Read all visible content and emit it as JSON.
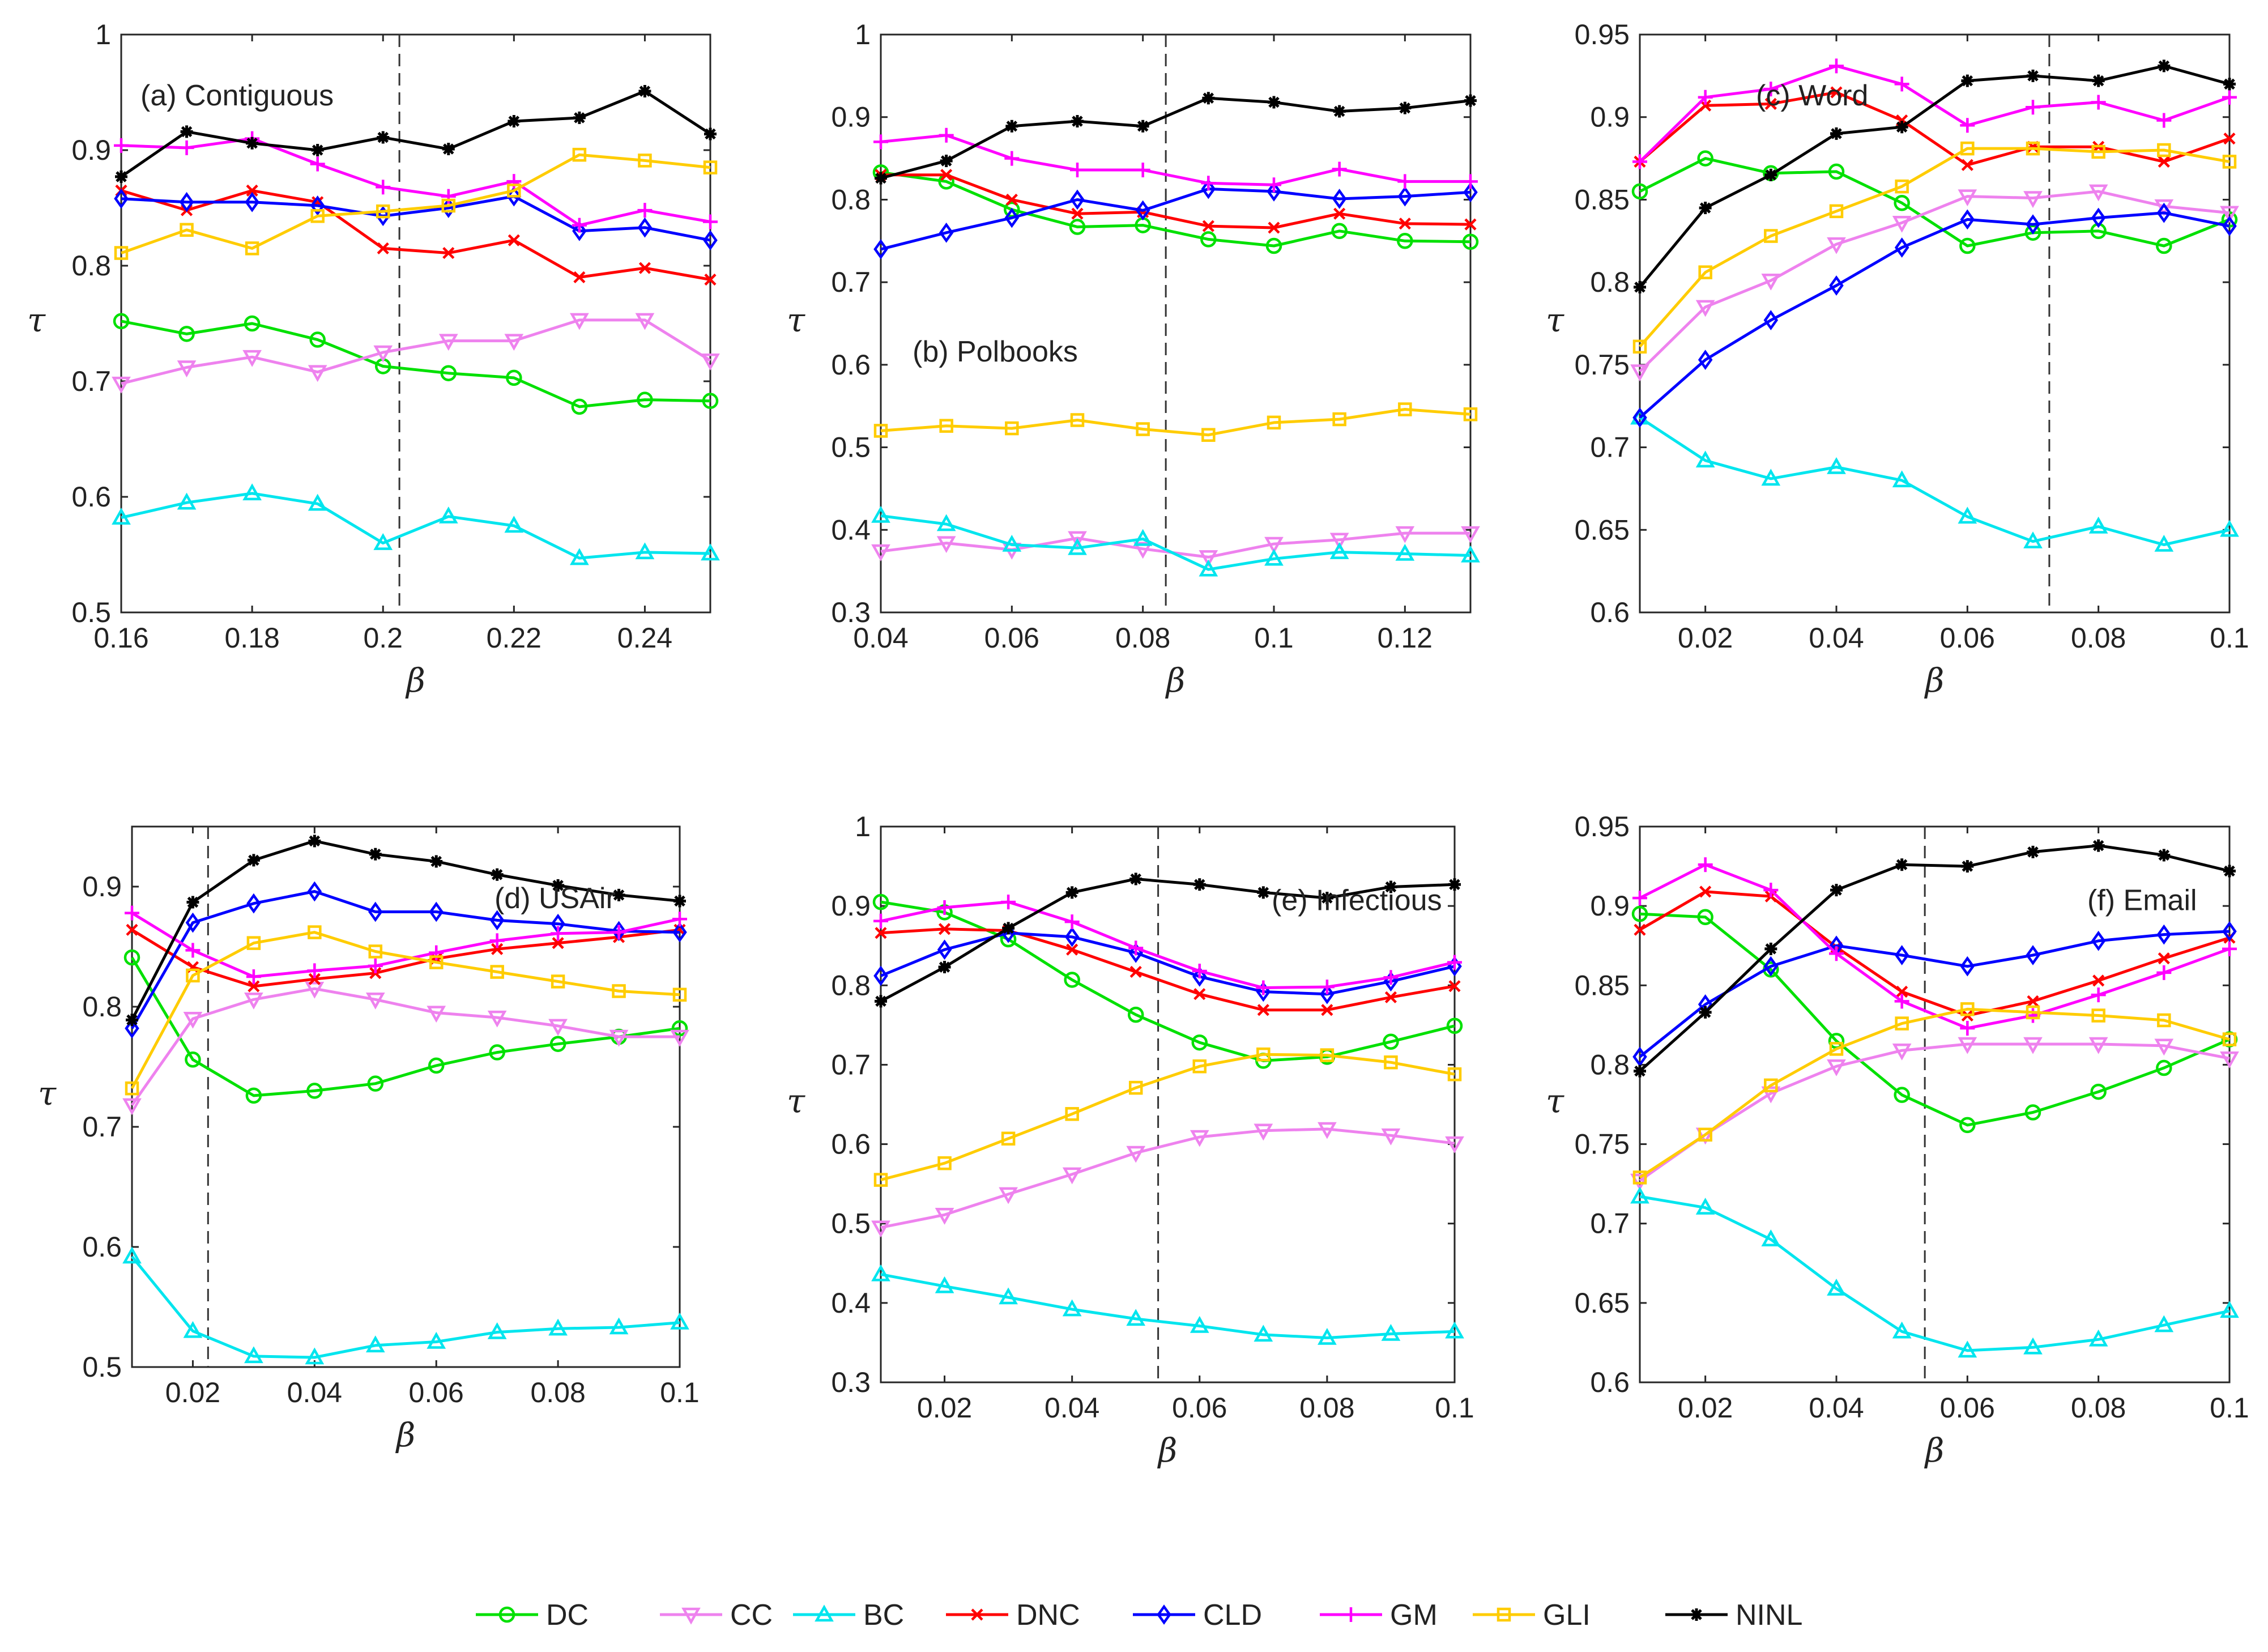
{
  "figure": {
    "series_meta": [
      {
        "key": "DC",
        "name": "DC",
        "color": "#00e000",
        "marker": "circle"
      },
      {
        "key": "CC",
        "name": "CC",
        "color": "#ee82ee",
        "marker": "triangle-down"
      },
      {
        "key": "BC",
        "name": "BC",
        "color": "#00e5ee",
        "marker": "triangle-up"
      },
      {
        "key": "DNC",
        "name": "DNC",
        "color": "#ff0000",
        "marker": "x"
      },
      {
        "key": "CLD",
        "name": "CLD",
        "color": "#0000ff",
        "marker": "diamond"
      },
      {
        "key": "GM",
        "name": "GM",
        "color": "#ff00ff",
        "marker": "plus"
      },
      {
        "key": "GLI",
        "name": "GLI",
        "color": "#ffcc00",
        "marker": "square"
      },
      {
        "key": "NINL",
        "name": "NINL",
        "color": "#000000",
        "marker": "star"
      }
    ]
  },
  "chart_data": [
    {
      "type": "line",
      "title": "(a) Contiguous",
      "xlabel": "β",
      "ylabel": "τ",
      "xlim": [
        0.16,
        0.25
      ],
      "ylim": [
        0.5,
        1.0
      ],
      "xticks": [
        0.16,
        0.18,
        0.2,
        0.22,
        0.24
      ],
      "xtick_labels": [
        "0.16",
        "0.18",
        "0.2",
        "0.22",
        "0.24"
      ],
      "yticks": [
        0.5,
        0.6,
        0.7,
        0.8,
        0.9,
        1.0
      ],
      "ytick_labels": [
        "0.5",
        "0.6",
        "0.7",
        "0.8",
        "0.9",
        "1"
      ],
      "vline": 0.2025,
      "x": [
        0.16,
        0.17,
        0.18,
        0.19,
        0.2,
        0.21,
        0.22,
        0.23,
        0.24,
        0.25
      ],
      "series": [
        {
          "name": "DC",
          "values": [
            0.752,
            0.741,
            0.75,
            0.736,
            0.713,
            0.707,
            0.703,
            0.678,
            0.684,
            0.683
          ]
        },
        {
          "name": "CC",
          "values": [
            0.698,
            0.712,
            0.721,
            0.708,
            0.725,
            0.735,
            0.735,
            0.753,
            0.753,
            0.718
          ]
        },
        {
          "name": "BC",
          "values": [
            0.582,
            0.595,
            0.603,
            0.594,
            0.56,
            0.583,
            0.575,
            0.547,
            0.552,
            0.551
          ]
        },
        {
          "name": "DNC",
          "values": [
            0.865,
            0.848,
            0.865,
            0.855,
            0.815,
            0.811,
            0.822,
            0.79,
            0.798,
            0.788
          ]
        },
        {
          "name": "CLD",
          "values": [
            0.858,
            0.855,
            0.855,
            0.852,
            0.843,
            0.85,
            0.86,
            0.83,
            0.833,
            0.822
          ]
        },
        {
          "name": "GM",
          "values": [
            0.904,
            0.902,
            0.91,
            0.888,
            0.868,
            0.86,
            0.873,
            0.835,
            0.848,
            0.838
          ]
        },
        {
          "name": "GLI",
          "values": [
            0.811,
            0.831,
            0.815,
            0.843,
            0.847,
            0.852,
            0.865,
            0.896,
            0.891,
            0.885
          ]
        },
        {
          "name": "NINL",
          "values": [
            0.877,
            0.916,
            0.906,
            0.9,
            0.911,
            0.901,
            0.925,
            0.928,
            0.951,
            0.914
          ]
        }
      ]
    },
    {
      "type": "line",
      "title": "(b) Polbooks",
      "xlabel": "β",
      "ylabel": "τ",
      "xlim": [
        0.04,
        0.13
      ],
      "ylim": [
        0.3,
        1.0
      ],
      "xticks": [
        0.04,
        0.06,
        0.08,
        0.1,
        0.12
      ],
      "xtick_labels": [
        "0.04",
        "0.06",
        "0.08",
        "0.1",
        "0.12"
      ],
      "yticks": [
        0.3,
        0.4,
        0.5,
        0.6,
        0.7,
        0.8,
        0.9,
        1.0
      ],
      "ytick_labels": [
        "0.3",
        "0.4",
        "0.5",
        "0.6",
        "0.7",
        "0.8",
        "0.9",
        "1"
      ],
      "vline": 0.0835,
      "x": [
        0.04,
        0.05,
        0.06,
        0.07,
        0.08,
        0.09,
        0.1,
        0.11,
        0.12,
        0.13
      ],
      "series": [
        {
          "name": "DC",
          "values": [
            0.833,
            0.822,
            0.788,
            0.767,
            0.769,
            0.752,
            0.744,
            0.762,
            0.75,
            0.749
          ]
        },
        {
          "name": "CC",
          "values": [
            0.374,
            0.384,
            0.376,
            0.39,
            0.377,
            0.367,
            0.383,
            0.388,
            0.396,
            0.396
          ]
        },
        {
          "name": "BC",
          "values": [
            0.417,
            0.407,
            0.382,
            0.378,
            0.389,
            0.352,
            0.365,
            0.373,
            0.371,
            0.369
          ]
        },
        {
          "name": "DNC",
          "values": [
            0.83,
            0.83,
            0.8,
            0.783,
            0.785,
            0.768,
            0.766,
            0.783,
            0.771,
            0.77
          ]
        },
        {
          "name": "CLD",
          "values": [
            0.74,
            0.76,
            0.778,
            0.8,
            0.787,
            0.813,
            0.81,
            0.801,
            0.804,
            0.809
          ]
        },
        {
          "name": "GM",
          "values": [
            0.87,
            0.878,
            0.85,
            0.836,
            0.836,
            0.82,
            0.818,
            0.837,
            0.822,
            0.822
          ]
        },
        {
          "name": "GLI",
          "values": [
            0.52,
            0.526,
            0.523,
            0.533,
            0.522,
            0.515,
            0.53,
            0.534,
            0.546,
            0.54
          ]
        },
        {
          "name": "NINL",
          "values": [
            0.826,
            0.847,
            0.889,
            0.895,
            0.889,
            0.923,
            0.918,
            0.907,
            0.911,
            0.92
          ]
        }
      ]
    },
    {
      "type": "line",
      "title": "(c) Word",
      "xlabel": "β",
      "ylabel": "τ",
      "xlim": [
        0.01,
        0.1
      ],
      "ylim": [
        0.6,
        0.95
      ],
      "xticks": [
        0.02,
        0.04,
        0.06,
        0.08,
        0.1
      ],
      "xtick_labels": [
        "0.02",
        "0.04",
        "0.06",
        "0.08",
        "0.1"
      ],
      "yticks": [
        0.6,
        0.65,
        0.7,
        0.75,
        0.8,
        0.85,
        0.9,
        0.95
      ],
      "ytick_labels": [
        "0.6",
        "0.65",
        "0.7",
        "0.75",
        "0.8",
        "0.85",
        "0.9",
        "0.95"
      ],
      "vline": 0.0725,
      "x": [
        0.01,
        0.02,
        0.03,
        0.04,
        0.05,
        0.06,
        0.07,
        0.08,
        0.09,
        0.1
      ],
      "series": [
        {
          "name": "DC",
          "values": [
            0.855,
            0.875,
            0.866,
            0.867,
            0.848,
            0.822,
            0.83,
            0.831,
            0.822,
            0.838
          ]
        },
        {
          "name": "CC",
          "values": [
            0.746,
            0.785,
            0.801,
            0.823,
            0.836,
            0.852,
            0.851,
            0.855,
            0.846,
            0.842
          ]
        },
        {
          "name": "BC",
          "values": [
            0.718,
            0.692,
            0.681,
            0.688,
            0.68,
            0.658,
            0.643,
            0.652,
            0.641,
            0.65
          ]
        },
        {
          "name": "DNC",
          "values": [
            0.873,
            0.907,
            0.908,
            0.915,
            0.898,
            0.871,
            0.882,
            0.882,
            0.873,
            0.887
          ]
        },
        {
          "name": "CLD",
          "values": [
            0.718,
            0.753,
            0.777,
            0.798,
            0.821,
            0.838,
            0.835,
            0.839,
            0.842,
            0.834
          ]
        },
        {
          "name": "GM",
          "values": [
            0.873,
            0.912,
            0.917,
            0.931,
            0.92,
            0.895,
            0.906,
            0.909,
            0.898,
            0.912
          ]
        },
        {
          "name": "GLI",
          "values": [
            0.761,
            0.806,
            0.828,
            0.843,
            0.858,
            0.881,
            0.881,
            0.879,
            0.88,
            0.873
          ]
        },
        {
          "name": "NINL",
          "values": [
            0.797,
            0.845,
            0.865,
            0.89,
            0.894,
            0.922,
            0.925,
            0.922,
            0.931,
            0.92
          ]
        }
      ]
    },
    {
      "type": "line",
      "title": "(d) USAir",
      "xlabel": "β",
      "ylabel": "τ",
      "xlim": [
        0.01,
        0.1
      ],
      "ylim": [
        0.5,
        0.95
      ],
      "xticks": [
        0.02,
        0.04,
        0.06,
        0.08,
        0.1
      ],
      "xtick_labels": [
        "0.02",
        "0.04",
        "0.06",
        "0.08",
        "0.1"
      ],
      "yticks": [
        0.5,
        0.6,
        0.7,
        0.8,
        0.9
      ],
      "ytick_labels": [
        "0.5",
        "0.6",
        "0.7",
        "0.8",
        "0.9"
      ],
      "vline": 0.0225,
      "x": [
        0.01,
        0.02,
        0.03,
        0.04,
        0.05,
        0.06,
        0.07,
        0.08,
        0.09,
        0.1
      ],
      "series": [
        {
          "name": "DC",
          "values": [
            0.841,
            0.756,
            0.726,
            0.73,
            0.736,
            0.751,
            0.762,
            0.769,
            0.775,
            0.782
          ]
        },
        {
          "name": "CC",
          "values": [
            0.718,
            0.79,
            0.806,
            0.815,
            0.806,
            0.795,
            0.791,
            0.784,
            0.775,
            0.775
          ]
        },
        {
          "name": "BC",
          "values": [
            0.592,
            0.53,
            0.509,
            0.508,
            0.518,
            0.521,
            0.529,
            0.532,
            0.533,
            0.537
          ]
        },
        {
          "name": "DNC",
          "values": [
            0.864,
            0.833,
            0.817,
            0.823,
            0.828,
            0.84,
            0.848,
            0.853,
            0.858,
            0.864
          ]
        },
        {
          "name": "CLD",
          "values": [
            0.782,
            0.87,
            0.886,
            0.896,
            0.879,
            0.879,
            0.872,
            0.869,
            0.863,
            0.862
          ]
        },
        {
          "name": "GM",
          "values": [
            0.878,
            0.847,
            0.825,
            0.83,
            0.834,
            0.845,
            0.855,
            0.861,
            0.862,
            0.873
          ]
        },
        {
          "name": "GLI",
          "values": [
            0.732,
            0.826,
            0.853,
            0.862,
            0.846,
            0.837,
            0.829,
            0.821,
            0.813,
            0.81
          ]
        },
        {
          "name": "NINL",
          "values": [
            0.789,
            0.887,
            0.922,
            0.938,
            0.927,
            0.921,
            0.91,
            0.901,
            0.893,
            0.888
          ]
        }
      ]
    },
    {
      "type": "line",
      "title": "(e) Infectious",
      "xlabel": "β",
      "ylabel": "τ",
      "xlim": [
        0.01,
        0.1
      ],
      "ylim": [
        0.3,
        1.0
      ],
      "xticks": [
        0.02,
        0.04,
        0.06,
        0.08,
        0.1
      ],
      "xtick_labels": [
        "0.02",
        "0.04",
        "0.06",
        "0.08",
        "0.1"
      ],
      "yticks": [
        0.3,
        0.4,
        0.5,
        0.6,
        0.7,
        0.8,
        0.9,
        1.0
      ],
      "ytick_labels": [
        "0.3",
        "0.4",
        "0.5",
        "0.6",
        "0.7",
        "0.8",
        "0.9",
        "1"
      ],
      "vline": 0.0535,
      "x": [
        0.01,
        0.02,
        0.03,
        0.04,
        0.05,
        0.06,
        0.07,
        0.08,
        0.09,
        0.1
      ],
      "series": [
        {
          "name": "DC",
          "values": [
            0.905,
            0.892,
            0.858,
            0.807,
            0.763,
            0.728,
            0.705,
            0.71,
            0.729,
            0.749
          ]
        },
        {
          "name": "CC",
          "values": [
            0.495,
            0.511,
            0.537,
            0.562,
            0.589,
            0.609,
            0.617,
            0.619,
            0.611,
            0.601
          ]
        },
        {
          "name": "BC",
          "values": [
            0.436,
            0.421,
            0.407,
            0.392,
            0.38,
            0.371,
            0.36,
            0.356,
            0.361,
            0.364
          ]
        },
        {
          "name": "DNC",
          "values": [
            0.866,
            0.871,
            0.869,
            0.845,
            0.817,
            0.789,
            0.769,
            0.769,
            0.785,
            0.799
          ]
        },
        {
          "name": "CLD",
          "values": [
            0.812,
            0.845,
            0.866,
            0.861,
            0.841,
            0.811,
            0.792,
            0.789,
            0.805,
            0.824
          ]
        },
        {
          "name": "GM",
          "values": [
            0.881,
            0.898,
            0.905,
            0.88,
            0.847,
            0.818,
            0.797,
            0.798,
            0.81,
            0.829
          ]
        },
        {
          "name": "GLI",
          "values": [
            0.555,
            0.576,
            0.607,
            0.638,
            0.671,
            0.698,
            0.713,
            0.712,
            0.703,
            0.688
          ]
        },
        {
          "name": "NINL",
          "values": [
            0.78,
            0.823,
            0.872,
            0.917,
            0.934,
            0.927,
            0.917,
            0.91,
            0.924,
            0.927
          ]
        }
      ]
    },
    {
      "type": "line",
      "title": "(f) Email",
      "xlabel": "β",
      "ylabel": "τ",
      "xlim": [
        0.01,
        0.1
      ],
      "ylim": [
        0.6,
        0.95
      ],
      "xticks": [
        0.02,
        0.04,
        0.06,
        0.08,
        0.1
      ],
      "xtick_labels": [
        "0.02",
        "0.04",
        "0.06",
        "0.08",
        "0.1"
      ],
      "yticks": [
        0.6,
        0.65,
        0.7,
        0.75,
        0.8,
        0.85,
        0.9,
        0.95
      ],
      "ytick_labels": [
        "0.6",
        "0.65",
        "0.7",
        "0.75",
        "0.8",
        "0.85",
        "0.9",
        "0.95"
      ],
      "vline": 0.0535,
      "x": [
        0.01,
        0.02,
        0.03,
        0.04,
        0.05,
        0.06,
        0.07,
        0.08,
        0.09,
        0.1
      ],
      "series": [
        {
          "name": "DC",
          "values": [
            0.895,
            0.893,
            0.86,
            0.815,
            0.781,
            0.762,
            0.77,
            0.783,
            0.798,
            0.816
          ]
        },
        {
          "name": "CC",
          "values": [
            0.727,
            0.756,
            0.782,
            0.799,
            0.809,
            0.813,
            0.813,
            0.813,
            0.812,
            0.804
          ]
        },
        {
          "name": "BC",
          "values": [
            0.717,
            0.71,
            0.69,
            0.659,
            0.632,
            0.62,
            0.622,
            0.627,
            0.636,
            0.645
          ]
        },
        {
          "name": "DNC",
          "values": [
            0.885,
            0.909,
            0.906,
            0.874,
            0.846,
            0.831,
            0.84,
            0.853,
            0.867,
            0.88
          ]
        },
        {
          "name": "CLD",
          "values": [
            0.805,
            0.838,
            0.862,
            0.875,
            0.869,
            0.862,
            0.869,
            0.878,
            0.882,
            0.884
          ]
        },
        {
          "name": "GM",
          "values": [
            0.905,
            0.926,
            0.91,
            0.87,
            0.84,
            0.823,
            0.831,
            0.844,
            0.858,
            0.873
          ]
        },
        {
          "name": "GLI",
          "values": [
            0.729,
            0.756,
            0.787,
            0.81,
            0.826,
            0.835,
            0.833,
            0.831,
            0.828,
            0.816
          ]
        },
        {
          "name": "NINL",
          "values": [
            0.796,
            0.833,
            0.873,
            0.91,
            0.926,
            0.925,
            0.934,
            0.938,
            0.932,
            0.922
          ]
        }
      ]
    }
  ]
}
